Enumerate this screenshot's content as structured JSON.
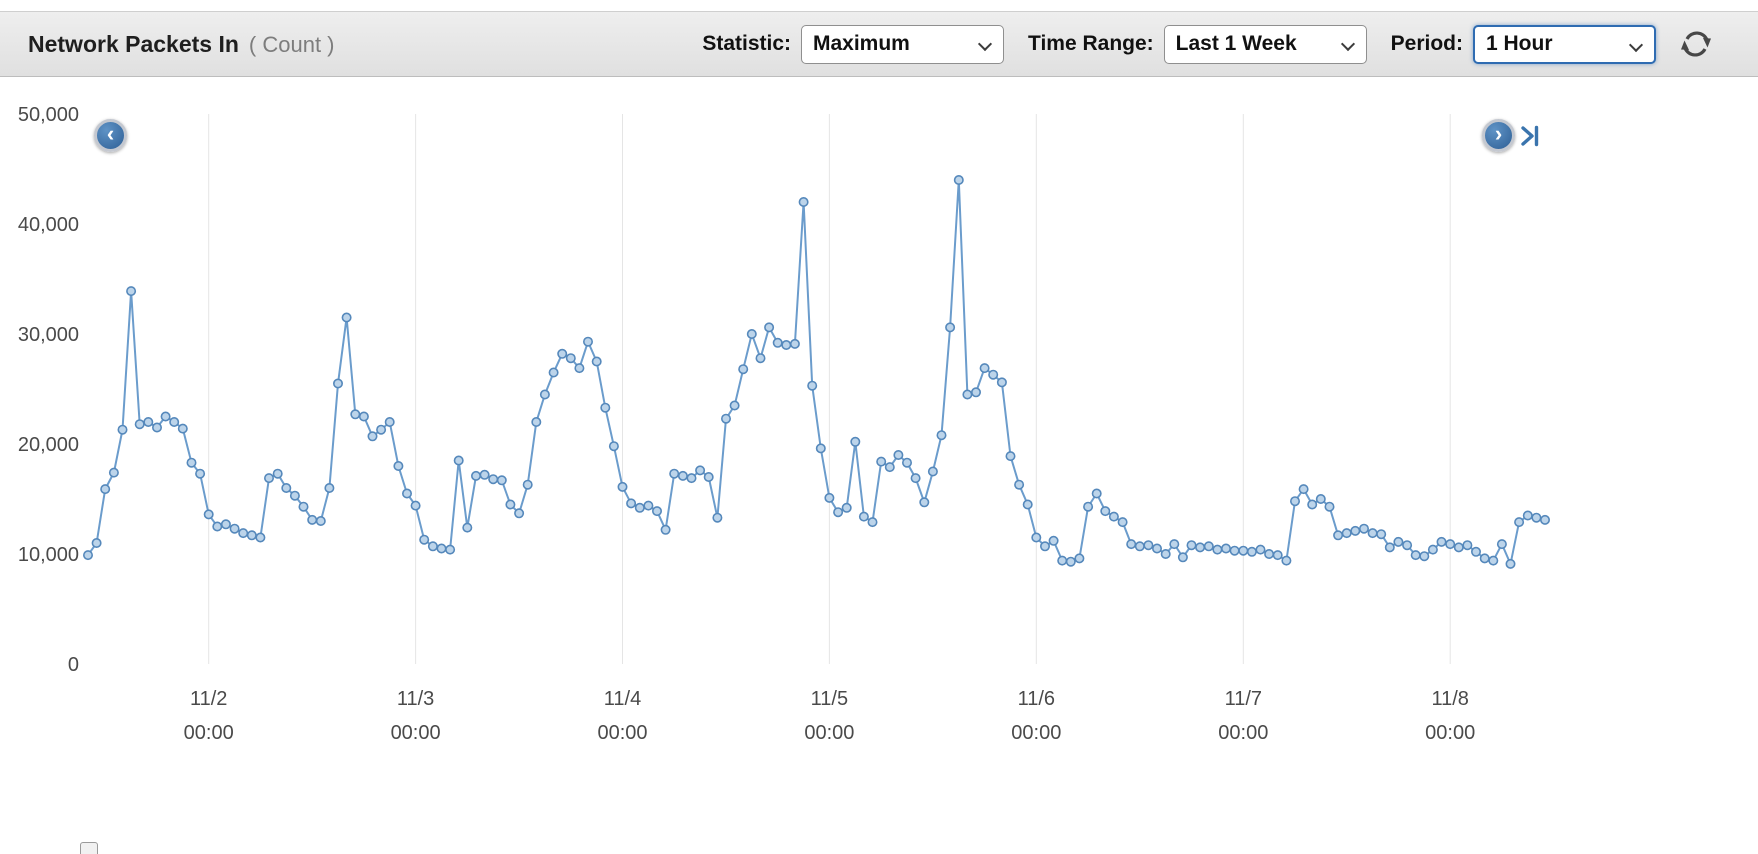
{
  "header": {
    "title": "Network Packets In",
    "subtitle": "( Count )",
    "statistic_label": "Statistic:",
    "statistic_value": "Maximum",
    "time_range_label": "Time Range:",
    "time_range_value": "Last 1 Week",
    "period_label": "Period:",
    "period_value": "1 Hour",
    "refresh_icon": "refresh-icon"
  },
  "nav": {
    "prev_icon": "chevron-left-icon",
    "next_icon": "chevron-right-icon",
    "skip_icon": "skip-to-latest-icon",
    "prev_glyph": "‹",
    "next_glyph": "›"
  },
  "chart_data": {
    "type": "line",
    "title": "Network Packets In ( Count )",
    "xlabel": "",
    "ylabel": "Count",
    "ylim": [
      0,
      50000
    ],
    "grid": "vertical-only",
    "legend_position": "none",
    "statistic": "Maximum",
    "time_range": "Last 1 Week",
    "period": "1 Hour",
    "y_ticks": [
      0,
      10000,
      20000,
      30000,
      40000,
      50000
    ],
    "y_tick_labels": [
      "0",
      "10,000",
      "20,000",
      "30,000",
      "40,000",
      "50,000"
    ],
    "x_ticks": [
      {
        "date": "11/2",
        "time": "00:00"
      },
      {
        "date": "11/3",
        "time": "00:00"
      },
      {
        "date": "11/4",
        "time": "00:00"
      },
      {
        "date": "11/5",
        "time": "00:00"
      },
      {
        "date": "11/6",
        "time": "00:00"
      },
      {
        "date": "11/7",
        "time": "00:00"
      },
      {
        "date": "11/8",
        "time": "00:00"
      }
    ],
    "x_tick_indices": [
      14,
      38,
      62,
      86,
      110,
      134,
      158
    ],
    "interval": "1 hour per point",
    "line_color": "#6b9ccc",
    "marker_fill": "#bcd4ea",
    "marker_stroke": "#5588bb",
    "series": [
      {
        "name": "Network Packets In",
        "values": [
          9900,
          11000,
          15900,
          17400,
          21300,
          33900,
          21800,
          22000,
          21500,
          22500,
          22000,
          21400,
          18300,
          17300,
          13600,
          12500,
          12700,
          12300,
          11900,
          11700,
          11500,
          16900,
          17300,
          16000,
          15300,
          14300,
          13100,
          13000,
          16000,
          25500,
          31500,
          22700,
          22500,
          20700,
          21300,
          22000,
          18000,
          15500,
          14400,
          11300,
          10700,
          10500,
          10400,
          18500,
          12400,
          17100,
          17200,
          16800,
          16700,
          14500,
          13700,
          16300,
          22000,
          24500,
          26500,
          28200,
          27800,
          26900,
          29300,
          27500,
          23300,
          19800,
          16100,
          14600,
          14200,
          14400,
          13900,
          12200,
          17300,
          17100,
          16900,
          17600,
          17000,
          13300,
          22300,
          23500,
          26800,
          30000,
          27800,
          30600,
          29200,
          29000,
          29100,
          42000,
          25300,
          19600,
          15100,
          13800,
          14200,
          20200,
          13400,
          12900,
          18400,
          17900,
          19000,
          18300,
          16900,
          14700,
          17500,
          20800,
          30600,
          44000,
          24500,
          24700,
          26900,
          26300,
          25600,
          18900,
          16300,
          14500,
          11500,
          10700,
          11200,
          9400,
          9300,
          9600,
          14300,
          15500,
          13900,
          13400,
          12900,
          10900,
          10700,
          10800,
          10500,
          10000,
          10900,
          9700,
          10800,
          10600,
          10700,
          10400,
          10500,
          10300,
          10300,
          10200,
          10400,
          10000,
          9900,
          9400,
          14800,
          15900,
          14500,
          15000,
          14300,
          11700,
          11900,
          12100,
          12300,
          11900,
          11800,
          10600,
          11100,
          10800,
          9900,
          9800,
          10400,
          11100,
          10900,
          10600,
          10800,
          10200,
          9600,
          9400,
          10900,
          9100,
          12900,
          13500,
          13300,
          13100
        ]
      }
    ]
  }
}
